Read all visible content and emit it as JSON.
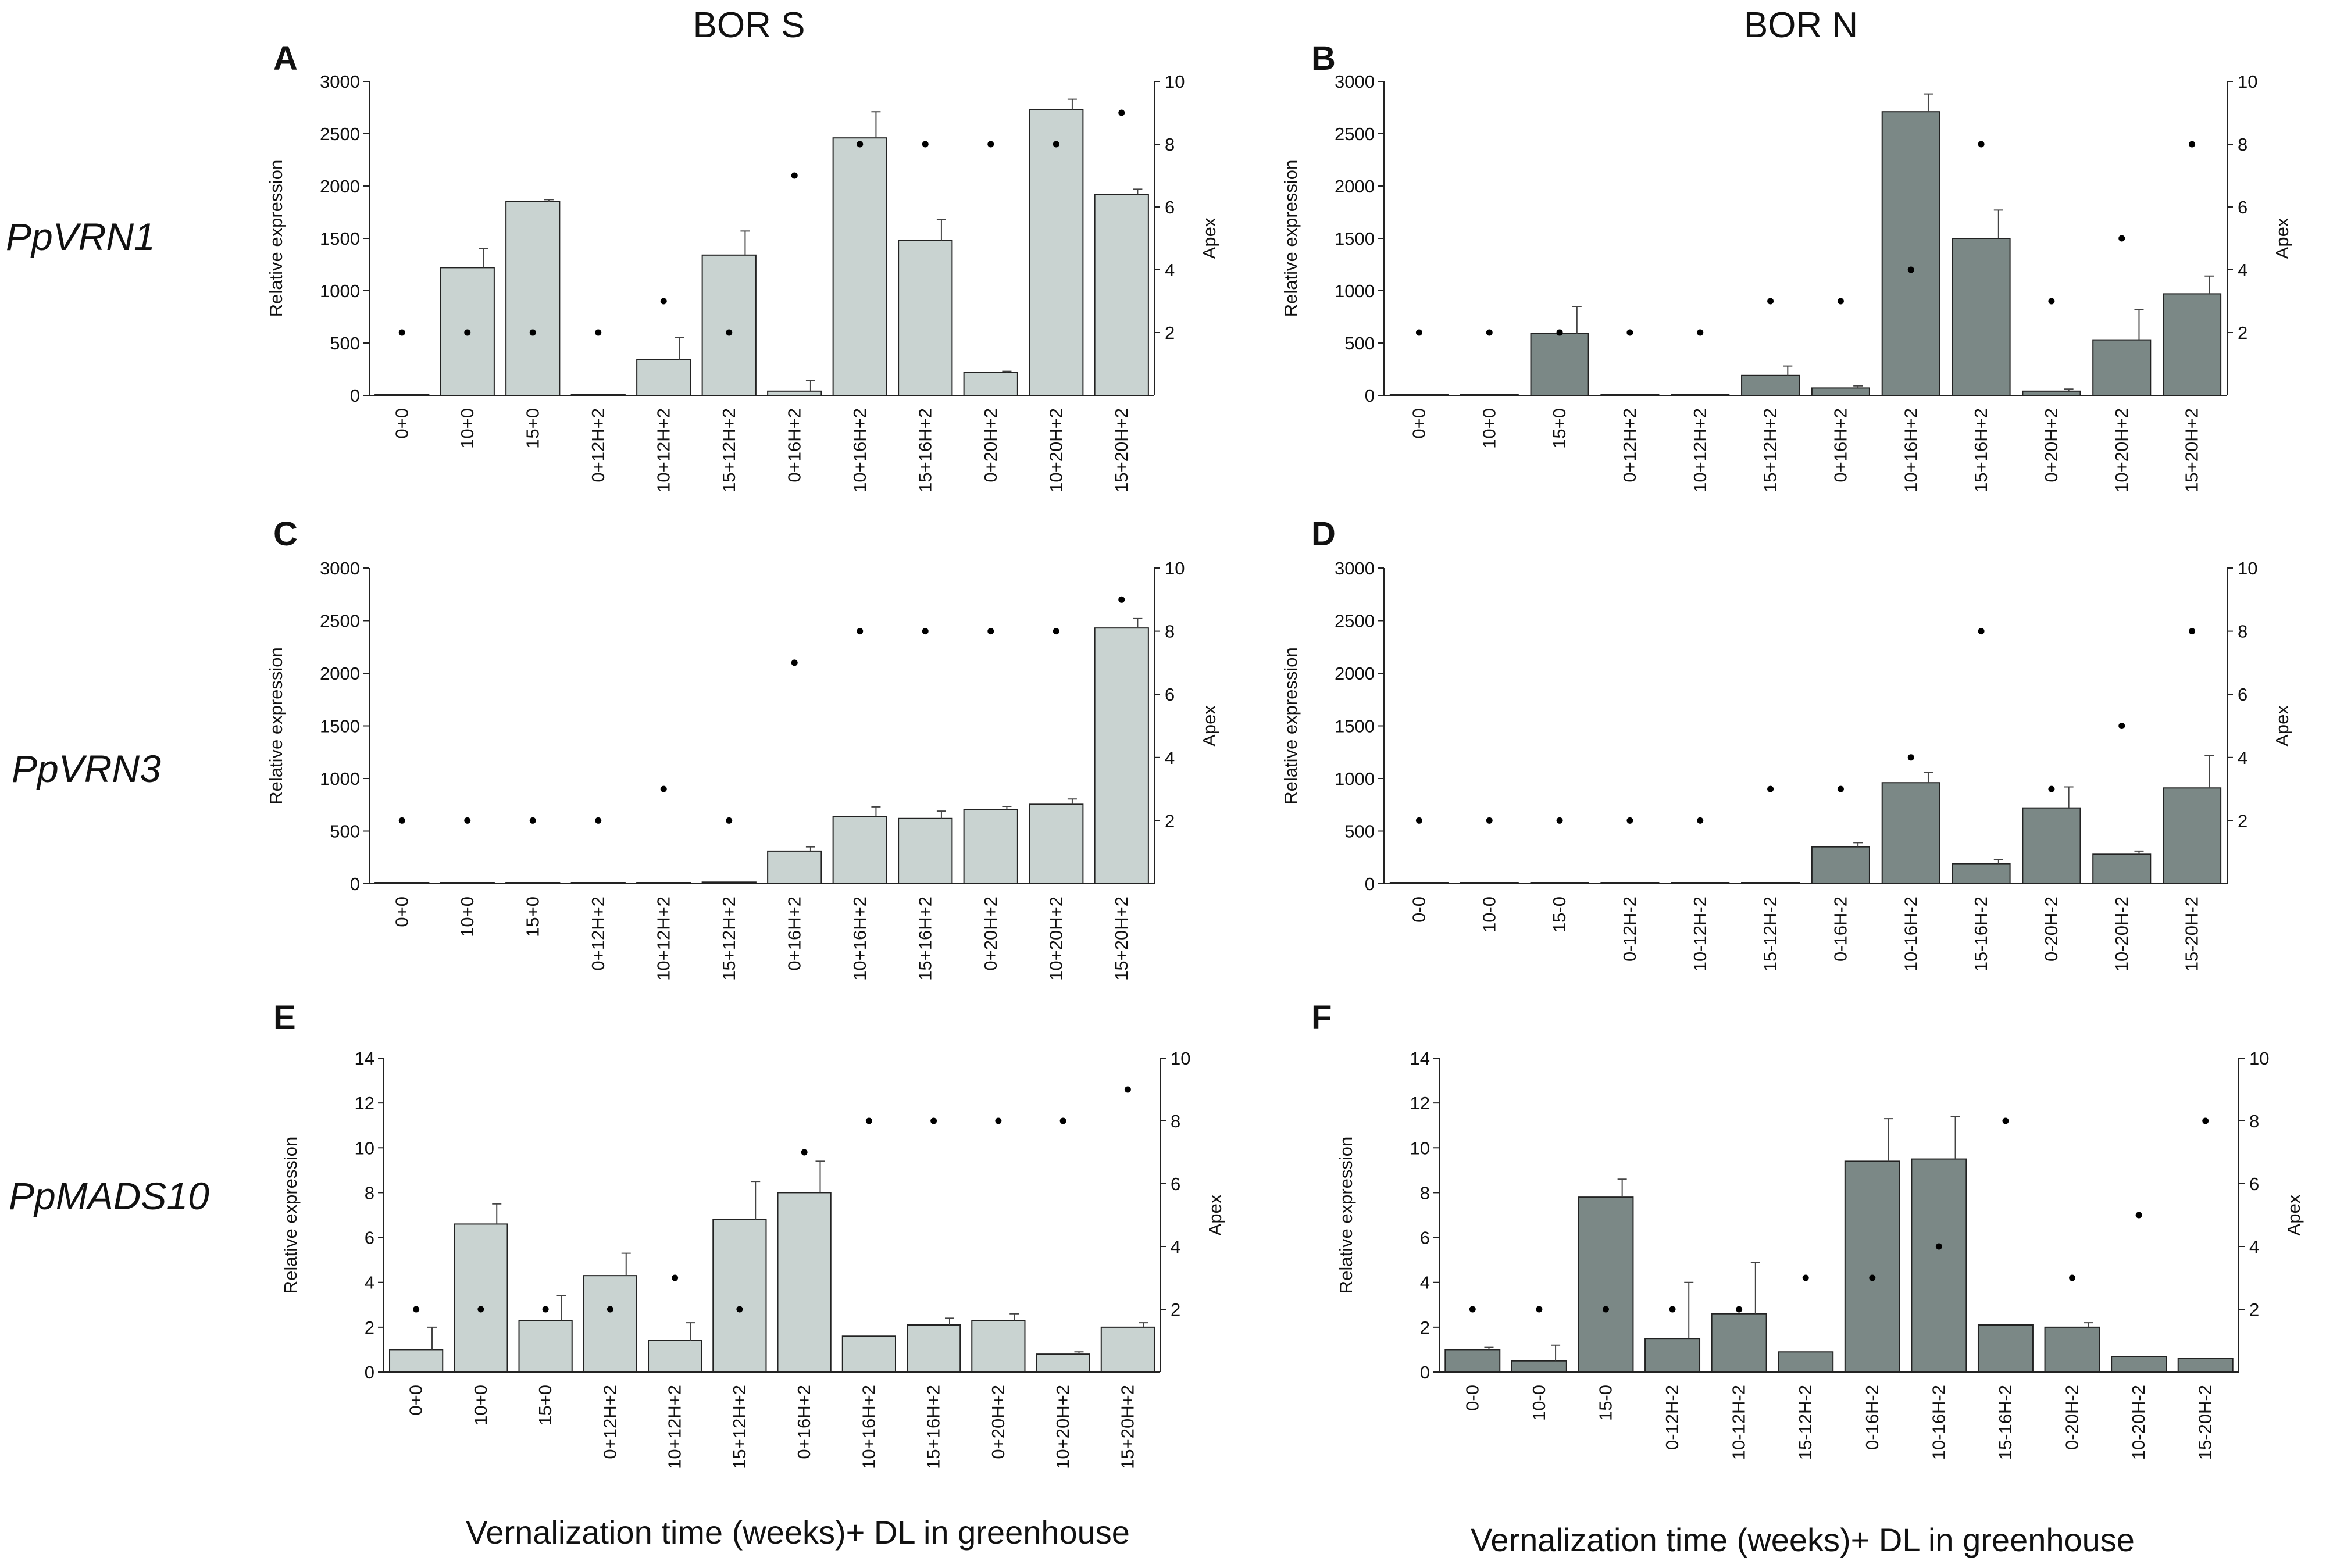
{
  "figure": {
    "col_headers": [
      "BOR S",
      "BOR N"
    ],
    "row_labels": [
      "PpVRN1",
      "PpVRN3",
      "PpMADS10"
    ],
    "x_titles": [
      "Vernalization time (weeks)+ DL in greenhouse",
      "Vernalization time (weeks)+ DL in greenhouse"
    ],
    "colors": {
      "bor_s_bar": "#c9d3d1",
      "bor_n_bar": "#7b8886",
      "stroke": "#222222"
    }
  },
  "chart_data": [
    {
      "panel": "A",
      "type": "bar",
      "title": "",
      "ylabel": "Relative expression",
      "y2label": "Apex",
      "ylim": [
        0,
        3000
      ],
      "yticks": [
        0,
        500,
        1000,
        1500,
        2000,
        2500,
        3000
      ],
      "y2lim": [
        0,
        10
      ],
      "y2ticks": [
        2,
        4,
        6,
        8,
        10
      ],
      "categories": [
        "0+0",
        "10+0",
        "15+0",
        "0+12H+2",
        "10+12H+2",
        "15+12H+2",
        "0+16H+2",
        "10+16H+2",
        "15+16H+2",
        "0+20H+2",
        "10+20H+2",
        "15+20H+2"
      ],
      "values": [
        0,
        1220,
        1850,
        10,
        340,
        1340,
        40,
        2460,
        1480,
        220,
        2730,
        1920
      ],
      "errors": [
        0,
        180,
        20,
        0,
        210,
        230,
        100,
        250,
        200,
        10,
        100,
        50
      ],
      "apex": [
        2,
        2,
        2,
        2,
        3,
        2,
        7,
        8,
        8,
        8,
        8,
        9
      ]
    },
    {
      "panel": "B",
      "type": "bar",
      "title": "",
      "ylabel": "Relative expression",
      "y2label": "Apex",
      "ylim": [
        0,
        3000
      ],
      "yticks": [
        0,
        500,
        1000,
        1500,
        2000,
        2500,
        3000
      ],
      "y2lim": [
        0,
        10
      ],
      "y2ticks": [
        2,
        4,
        6,
        8,
        10
      ],
      "categories": [
        "0+0",
        "10+0",
        "15+0",
        "0+12H+2",
        "10+12H+2",
        "15+12H+2",
        "0+16H+2",
        "10+16H+2",
        "15+16H+2",
        "0+20H+2",
        "10+20H+2",
        "15+20H+2"
      ],
      "values": [
        0,
        5,
        590,
        5,
        10,
        190,
        70,
        2710,
        1500,
        40,
        530,
        970
      ],
      "errors": [
        0,
        0,
        260,
        0,
        0,
        90,
        20,
        170,
        270,
        20,
        290,
        170
      ],
      "apex": [
        2,
        2,
        2,
        2,
        2,
        3,
        3,
        4,
        8,
        3,
        5,
        8
      ]
    },
    {
      "panel": "C",
      "type": "bar",
      "title": "",
      "ylabel": "Relative expression",
      "y2label": "Apex",
      "ylim": [
        0,
        3000
      ],
      "yticks": [
        0,
        500,
        1000,
        1500,
        2000,
        2500,
        3000
      ],
      "y2lim": [
        0,
        10
      ],
      "y2ticks": [
        2,
        4,
        6,
        8,
        10
      ],
      "categories": [
        "0+0",
        "10+0",
        "15+0",
        "0+12H+2",
        "10+12H+2",
        "15+12H+2",
        "0+16H+2",
        "10+16H+2",
        "15+16H+2",
        "0+20H+2",
        "10+20H+2",
        "15+20H+2"
      ],
      "values": [
        0,
        5,
        5,
        5,
        5,
        15,
        310,
        640,
        620,
        705,
        755,
        2430
      ],
      "errors": [
        0,
        0,
        0,
        0,
        0,
        0,
        40,
        90,
        70,
        30,
        50,
        90
      ],
      "apex": [
        2,
        2,
        2,
        2,
        3,
        2,
        7,
        8,
        8,
        8,
        8,
        9
      ]
    },
    {
      "panel": "D",
      "type": "bar",
      "title": "",
      "ylabel": "Relative expression",
      "y2label": "Apex",
      "ylim": [
        0,
        3000
      ],
      "yticks": [
        0,
        500,
        1000,
        1500,
        2000,
        2500,
        3000
      ],
      "y2lim": [
        0,
        10
      ],
      "y2ticks": [
        2,
        4,
        6,
        8,
        10
      ],
      "categories": [
        "0-0",
        "10-0",
        "15-0",
        "0-12H-2",
        "10-12H-2",
        "15-12H-2",
        "0-16H-2",
        "10-16H-2",
        "15-16H-2",
        "0-20H-2",
        "10-20H-2",
        "15-20H-2"
      ],
      "values": [
        0,
        0,
        5,
        5,
        5,
        5,
        350,
        960,
        190,
        720,
        280,
        910
      ],
      "errors": [
        0,
        0,
        0,
        0,
        0,
        0,
        40,
        100,
        40,
        200,
        30,
        310
      ],
      "apex": [
        2,
        2,
        2,
        2,
        2,
        3,
        3,
        4,
        8,
        3,
        5,
        8
      ]
    },
    {
      "panel": "E",
      "type": "bar",
      "title": "",
      "ylabel": "Relative expression",
      "y2label": "Apex",
      "ylim": [
        0,
        14
      ],
      "yticks": [
        0,
        2,
        4,
        6,
        8,
        10,
        12,
        14
      ],
      "y2lim": [
        0,
        10
      ],
      "y2ticks": [
        2,
        4,
        6,
        8,
        10
      ],
      "categories": [
        "0+0",
        "10+0",
        "15+0",
        "0+12H+2",
        "10+12H+2",
        "15+12H+2",
        "0+16H+2",
        "10+16H+2",
        "15+16H+2",
        "0+20H+2",
        "10+20H+2",
        "15+20H+2"
      ],
      "values": [
        1.0,
        6.6,
        2.3,
        4.3,
        1.4,
        6.8,
        8.0,
        1.6,
        2.1,
        2.3,
        0.8,
        2.0
      ],
      "errors": [
        1.0,
        0.9,
        1.1,
        1.0,
        0.8,
        1.7,
        1.4,
        0.0,
        0.3,
        0.3,
        0.1,
        0.2
      ],
      "apex": [
        2,
        2,
        2,
        2,
        3,
        2,
        7,
        8,
        8,
        8,
        8,
        9
      ]
    },
    {
      "panel": "F",
      "type": "bar",
      "title": "",
      "ylabel": "Relative expression",
      "y2label": "Apex",
      "ylim": [
        0,
        14
      ],
      "yticks": [
        0,
        2,
        4,
        6,
        8,
        10,
        12,
        14
      ],
      "y2lim": [
        0,
        10
      ],
      "y2ticks": [
        2,
        4,
        6,
        8,
        10
      ],
      "categories": [
        "0-0",
        "10-0",
        "15-0",
        "0-12H-2",
        "10-12H-2",
        "15-12H-2",
        "0-16H-2",
        "10-16H-2",
        "15-16H-2",
        "0-20H-2",
        "10-20H-2",
        "15-20H-2"
      ],
      "values": [
        1.0,
        0.5,
        7.8,
        1.5,
        2.6,
        0.9,
        9.4,
        9.5,
        2.1,
        2.0,
        0.7,
        0.6
      ],
      "errors": [
        0.1,
        0.7,
        0.8,
        2.5,
        2.3,
        0.0,
        1.9,
        1.9,
        0.0,
        0.2,
        0.0,
        0.0
      ],
      "apex": [
        2,
        2,
        2,
        2,
        2,
        3,
        3,
        4,
        8,
        3,
        5,
        8
      ]
    }
  ]
}
